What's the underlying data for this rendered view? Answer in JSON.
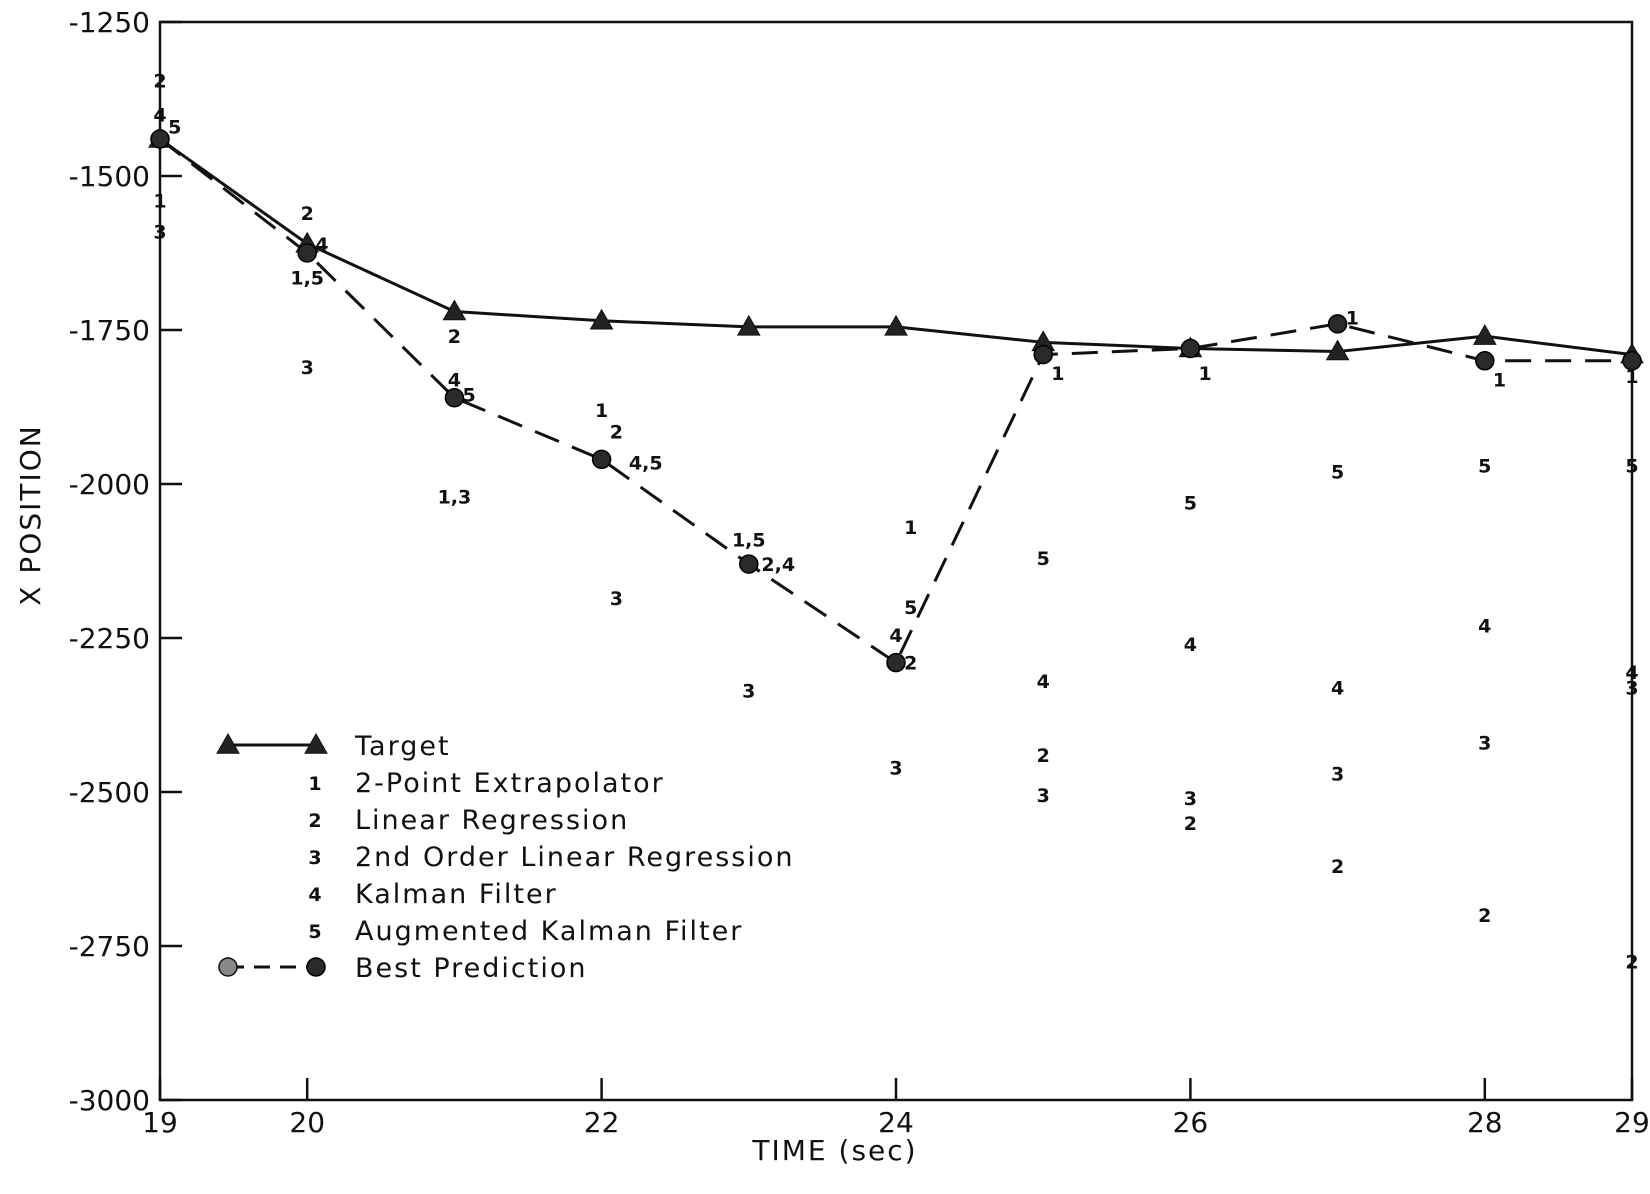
{
  "chart_data": {
    "type": "line",
    "title": "",
    "xlabel": "TIME (sec)",
    "ylabel": "X POSITION",
    "xlim": [
      19,
      29
    ],
    "ylim": [
      -3000,
      -1250
    ],
    "x_ticks": [
      19,
      20,
      22,
      24,
      26,
      28,
      29
    ],
    "x_tick_labels": [
      "19",
      "20",
      "22",
      "24",
      "26",
      "28",
      "29"
    ],
    "y_ticks": [
      -1250,
      -1500,
      -1750,
      -2000,
      -2250,
      -2500,
      -2750,
      -3000
    ],
    "y_tick_labels": [
      "-1250",
      "-1500",
      "-1750",
      "-2000",
      "-2250",
      "-2500",
      "-2750",
      "-3000"
    ],
    "grid": false,
    "legend_position": "lower-left",
    "series": [
      {
        "name": "Target",
        "style": "solid line with triangle markers",
        "points": [
          {
            "x": 19,
            "y": -1440
          },
          {
            "x": 20,
            "y": -1610
          },
          {
            "x": 21,
            "y": -1720
          },
          {
            "x": 22,
            "y": -1735
          },
          {
            "x": 23,
            "y": -1745
          },
          {
            "x": 24,
            "y": -1745
          },
          {
            "x": 25,
            "y": -1770
          },
          {
            "x": 26,
            "y": -1780
          },
          {
            "x": 27,
            "y": -1785
          },
          {
            "x": 28,
            "y": -1760
          },
          {
            "x": 29,
            "y": -1790
          }
        ]
      },
      {
        "name": "Best Prediction",
        "style": "dashed line with filled circle markers",
        "points": [
          {
            "x": 19,
            "y": -1440
          },
          {
            "x": 20,
            "y": -1625
          },
          {
            "x": 21,
            "y": -1860
          },
          {
            "x": 22,
            "y": -1960
          },
          {
            "x": 23,
            "y": -2130
          },
          {
            "x": 24,
            "y": -2290
          },
          {
            "x": 25,
            "y": -1790
          },
          {
            "x": 26,
            "y": -1780
          },
          {
            "x": 27,
            "y": -1740
          },
          {
            "x": 28,
            "y": -1800
          },
          {
            "x": 29,
            "y": -1800
          }
        ]
      }
    ],
    "method_predictions": [
      {
        "label": "2",
        "x": 19,
        "y": -1345
      },
      {
        "label": "4",
        "x": 19,
        "y": -1400
      },
      {
        "label": "5",
        "x": 19.1,
        "y": -1420
      },
      {
        "label": "1",
        "x": 19,
        "y": -1540
      },
      {
        "label": "3",
        "x": 19,
        "y": -1590
      },
      {
        "label": "2",
        "x": 20,
        "y": -1560
      },
      {
        "label": "4",
        "x": 20.1,
        "y": -1610
      },
      {
        "label": "1,5",
        "x": 20,
        "y": -1665
      },
      {
        "label": "3",
        "x": 20,
        "y": -1810
      },
      {
        "label": "2",
        "x": 21,
        "y": -1760
      },
      {
        "label": "4",
        "x": 21,
        "y": -1830
      },
      {
        "label": "5",
        "x": 21.1,
        "y": -1855
      },
      {
        "label": "1,3",
        "x": 21,
        "y": -2020
      },
      {
        "label": "1",
        "x": 22,
        "y": -1880
      },
      {
        "label": "2",
        "x": 22.1,
        "y": -1915
      },
      {
        "label": "4,5",
        "x": 22.3,
        "y": -1965
      },
      {
        "label": "3",
        "x": 22.1,
        "y": -2185
      },
      {
        "label": "1,5",
        "x": 23,
        "y": -2090
      },
      {
        "label": "2,4",
        "x": 23.2,
        "y": -2130
      },
      {
        "label": "3",
        "x": 23,
        "y": -2335
      },
      {
        "label": "1",
        "x": 24.1,
        "y": -2070
      },
      {
        "label": "5",
        "x": 24.1,
        "y": -2200
      },
      {
        "label": "4",
        "x": 24,
        "y": -2245
      },
      {
        "label": "2",
        "x": 24.1,
        "y": -2290
      },
      {
        "label": "3",
        "x": 24,
        "y": -2460
      },
      {
        "label": "1",
        "x": 25.1,
        "y": -1820
      },
      {
        "label": "5",
        "x": 25,
        "y": -2120
      },
      {
        "label": "4",
        "x": 25,
        "y": -2320
      },
      {
        "label": "2",
        "x": 25,
        "y": -2440
      },
      {
        "label": "3",
        "x": 25,
        "y": -2505
      },
      {
        "label": "1",
        "x": 26.1,
        "y": -1820
      },
      {
        "label": "5",
        "x": 26,
        "y": -2030
      },
      {
        "label": "4",
        "x": 26,
        "y": -2260
      },
      {
        "label": "3",
        "x": 26,
        "y": -2510
      },
      {
        "label": "2",
        "x": 26,
        "y": -2550
      },
      {
        "label": "1",
        "x": 27.1,
        "y": -1730
      },
      {
        "label": "5",
        "x": 27,
        "y": -1980
      },
      {
        "label": "4",
        "x": 27,
        "y": -2330
      },
      {
        "label": "3",
        "x": 27,
        "y": -2470
      },
      {
        "label": "2",
        "x": 27,
        "y": -2620
      },
      {
        "label": "1",
        "x": 28.1,
        "y": -1830
      },
      {
        "label": "5",
        "x": 28,
        "y": -1970
      },
      {
        "label": "4",
        "x": 28,
        "y": -2230
      },
      {
        "label": "3",
        "x": 28,
        "y": -2420
      },
      {
        "label": "2",
        "x": 28,
        "y": -2700
      },
      {
        "label": "1",
        "x": 29,
        "y": -1825
      },
      {
        "label": "5",
        "x": 29,
        "y": -1970
      },
      {
        "label": "4",
        "x": 29,
        "y": -2305
      },
      {
        "label": "3",
        "x": 29,
        "y": -2330
      },
      {
        "label": "2",
        "x": 29,
        "y": -2775
      }
    ],
    "legend": {
      "entries": [
        {
          "key": "",
          "symbol": "line-triangle",
          "label": "Target"
        },
        {
          "key": "1",
          "symbol": "text",
          "label": "2-Point Extrapolator"
        },
        {
          "key": "2",
          "symbol": "text",
          "label": "Linear Regression"
        },
        {
          "key": "3",
          "symbol": "text",
          "label": "2nd Order Linear Regression"
        },
        {
          "key": "4",
          "symbol": "text",
          "label": "Kalman Filter"
        },
        {
          "key": "5",
          "symbol": "text",
          "label": "Augmented Kalman Filter"
        },
        {
          "key": "",
          "symbol": "dashed-circle",
          "label": "Best Prediction"
        }
      ]
    }
  }
}
